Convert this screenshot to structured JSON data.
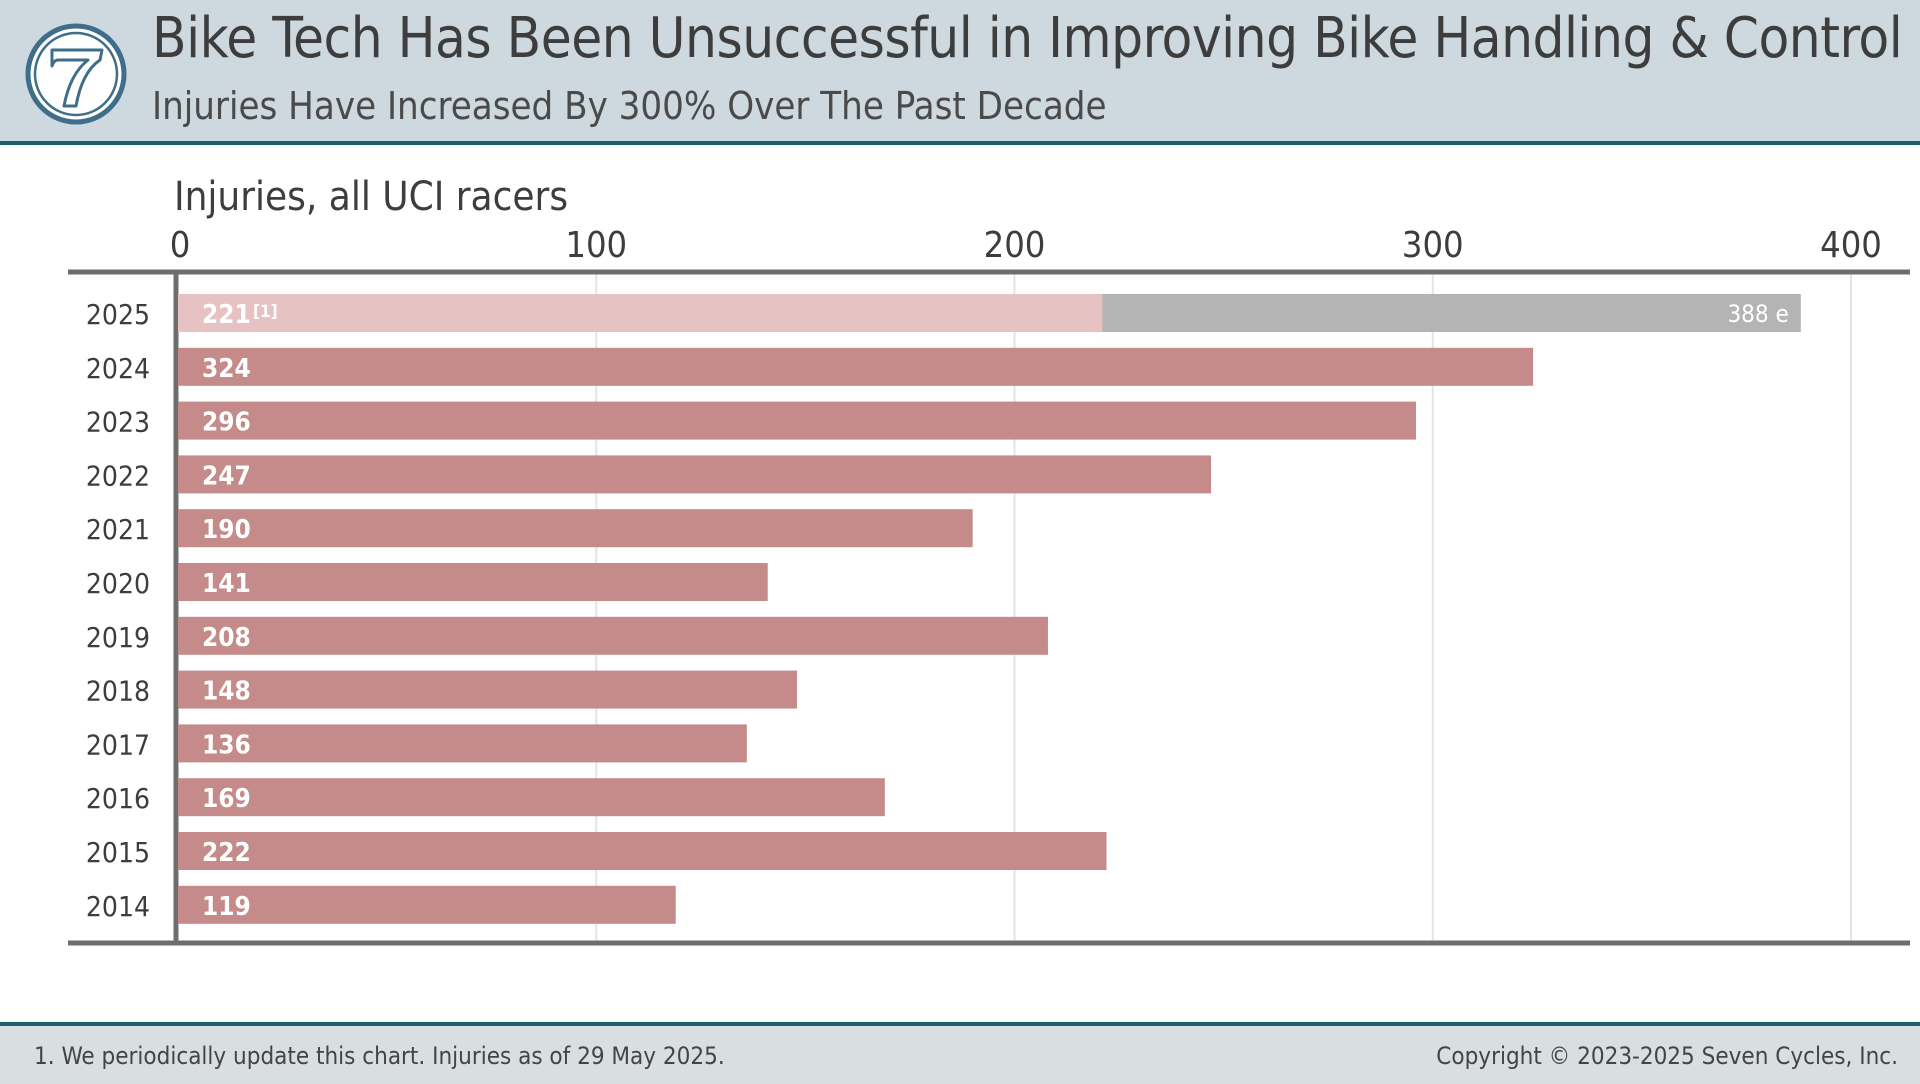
{
  "header": {
    "title": "Bike Tech Has Been Unsuccessful in Improving Bike Handling & Control",
    "subtitle": "Injuries Have Increased By 300% Over The Past Decade",
    "logo_text": "7"
  },
  "chart_data": {
    "type": "bar",
    "orientation": "horizontal",
    "xlabel": "Injuries, all UCI racers",
    "xlim": [
      0,
      400
    ],
    "xticks": [
      "0",
      "100",
      "200",
      "300",
      "400"
    ],
    "grid": true,
    "categories": [
      "2025",
      "2024",
      "2023",
      "2022",
      "2021",
      "2020",
      "2019",
      "2018",
      "2017",
      "2016",
      "2015",
      "2014"
    ],
    "values": [
      221,
      324,
      296,
      247,
      190,
      141,
      208,
      148,
      136,
      169,
      222,
      119
    ],
    "labels": [
      "221",
      "324",
      "296",
      "247",
      "190",
      "141",
      "208",
      "148",
      "136",
      "169",
      "222",
      "119"
    ],
    "footnote_marker": "[1]",
    "estimate": {
      "category": "2025",
      "value": 388,
      "label": "388 e"
    },
    "colors": {
      "bar": "#c48b8a",
      "current_year": "#e6c2c3",
      "estimate": "#b4b4b4",
      "axis": "#6e6e6e",
      "grid": "#e4e4e4"
    }
  },
  "footer": {
    "note": "1. We periodically update this chart.  Injuries as of 29 May 2025.",
    "copyright": "Copyright © 2023-2025 Seven Cycles, Inc."
  },
  "colors": {
    "header_bg": "#cdd9de",
    "accent": "#1a5f6e",
    "footer_bg": "#d9dfe0"
  }
}
